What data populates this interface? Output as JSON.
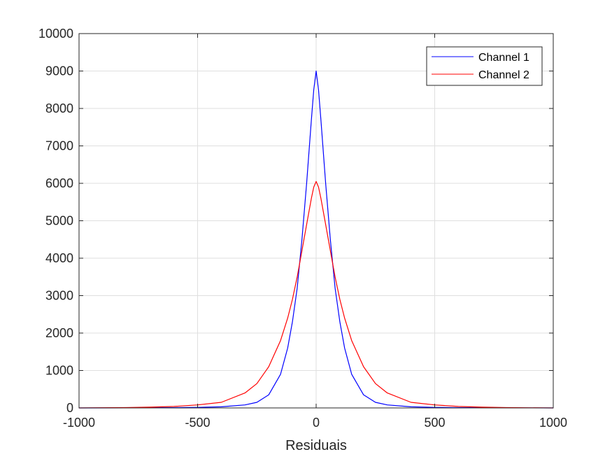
{
  "chart_data": {
    "type": "line",
    "title": "",
    "xlabel": "Residuais",
    "ylabel": "",
    "xlim": [
      -1000,
      1000
    ],
    "ylim": [
      0,
      10000
    ],
    "xticks": [
      "-1000",
      "-500",
      "0",
      "500",
      "1000"
    ],
    "yticks": [
      "0",
      "1000",
      "2000",
      "3000",
      "4000",
      "5000",
      "6000",
      "7000",
      "8000",
      "9000",
      "10000"
    ],
    "grid": true,
    "legend_position": "top-right",
    "series": [
      {
        "name": "Channel 1",
        "color": "#0000ff",
        "x": [
          -1000,
          -800,
          -600,
          -500,
          -400,
          -300,
          -250,
          -200,
          -150,
          -120,
          -100,
          -80,
          -60,
          -40,
          -20,
          -10,
          0,
          10,
          20,
          40,
          60,
          80,
          100,
          120,
          150,
          200,
          250,
          300,
          400,
          500,
          600,
          800,
          1000
        ],
        "y": [
          0,
          2,
          8,
          15,
          30,
          80,
          150,
          350,
          900,
          1600,
          2300,
          3200,
          4500,
          6000,
          7700,
          8500,
          9000,
          8500,
          7700,
          6000,
          4500,
          3200,
          2300,
          1600,
          900,
          350,
          150,
          80,
          30,
          15,
          8,
          2,
          0
        ]
      },
      {
        "name": "Channel 2",
        "color": "#ff0000",
        "x": [
          -1000,
          -800,
          -700,
          -600,
          -500,
          -400,
          -300,
          -250,
          -200,
          -150,
          -120,
          -100,
          -80,
          -60,
          -40,
          -20,
          -10,
          0,
          10,
          20,
          40,
          60,
          80,
          100,
          120,
          150,
          200,
          250,
          300,
          400,
          500,
          600,
          700,
          800,
          1000
        ],
        "y": [
          0,
          10,
          20,
          40,
          80,
          150,
          400,
          650,
          1100,
          1800,
          2400,
          2900,
          3500,
          4200,
          4900,
          5600,
          5900,
          6050,
          5900,
          5600,
          4900,
          4200,
          3500,
          2900,
          2400,
          1800,
          1100,
          650,
          400,
          150,
          80,
          40,
          20,
          10,
          0
        ]
      }
    ]
  }
}
